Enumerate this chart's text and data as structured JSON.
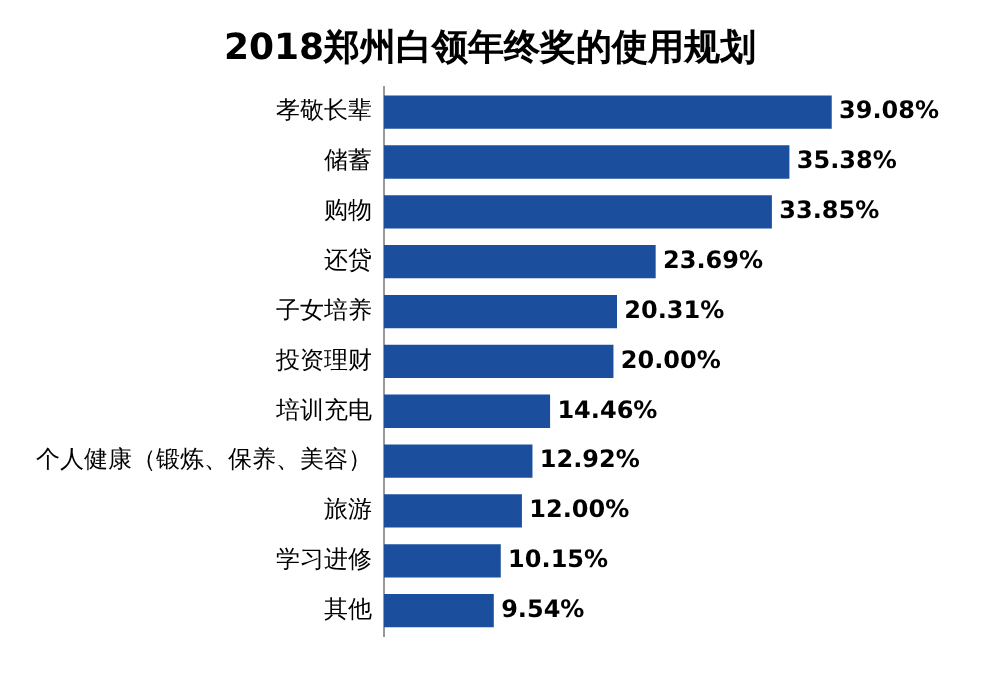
{
  "chart_data": {
    "type": "bar",
    "orientation": "horizontal",
    "title": "2018郑州白领年终奖的使用规划",
    "categories": [
      "孝敬长辈",
      "储蓄",
      "购物",
      "还贷",
      "子女培养",
      "投资理财",
      "培训充电",
      "个人健康（锻炼、保养、美容）",
      "旅游",
      "学习进修",
      "其他"
    ],
    "values": [
      39.08,
      35.38,
      33.85,
      23.69,
      20.31,
      20.0,
      14.46,
      12.92,
      12.0,
      10.15,
      9.54
    ],
    "value_labels": [
      "39.08%",
      "35.38%",
      "33.85%",
      "23.69%",
      "20.31%",
      "20.00%",
      "14.46%",
      "12.92%",
      "12.00%",
      "10.15%",
      "9.54%"
    ],
    "color": "#1b4f9e"
  }
}
